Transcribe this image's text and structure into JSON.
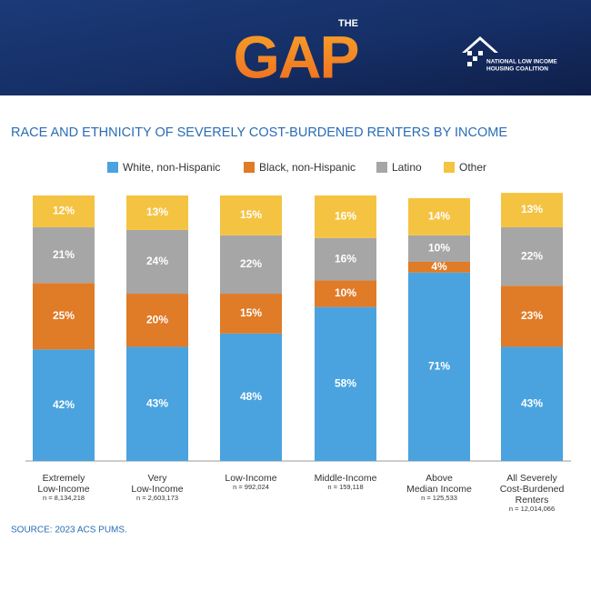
{
  "header": {
    "logo_small": "THE",
    "logo": "GAP",
    "org": [
      "NATIONAL LOW INCOME",
      "HOUSING COALITION"
    ]
  },
  "chart_data": {
    "type": "stacked_bar",
    "title": "RACE AND ETHNICITY OF SEVERELY COST-BURDENED RENTERS BY INCOME",
    "categories": [
      [
        "Extremely",
        "Low-Income"
      ],
      [
        "Very",
        "Low-Income"
      ],
      [
        "Low-Income"
      ],
      [
        "Middle-Income"
      ],
      [
        "Above",
        "Median Income"
      ],
      [
        "All Severely",
        "Cost-Burdened",
        "Renters"
      ]
    ],
    "n_labels": [
      "n = 8,134,218",
      "n = 2,603,173",
      "n = 992,024",
      "n = 159,118",
      "n = 125,533",
      "n = 12,014,066"
    ],
    "ylim": [
      0,
      100
    ],
    "series": [
      {
        "name": "White, non-Hispanic",
        "color": "#4aa3df",
        "values": [
          42,
          43,
          48,
          58,
          71,
          43
        ],
        "value_labels": [
          "42%",
          "43%",
          "48%",
          "58%",
          "71%",
          "43%"
        ]
      },
      {
        "name": "Black, non-Hispanic",
        "color": "#e07b27",
        "values": [
          25,
          20,
          15,
          10,
          4,
          23
        ],
        "value_labels": [
          "25%",
          "20%",
          "15%",
          "10%",
          "4%",
          "23%"
        ]
      },
      {
        "name": "Latino",
        "color": "#a6a6a6",
        "values": [
          21,
          24,
          22,
          16,
          10,
          22
        ],
        "value_labels": [
          "21%",
          "24%",
          "22%",
          "16%",
          "10%",
          "22%"
        ]
      },
      {
        "name": "Other",
        "color": "#f5c342",
        "values": [
          12,
          13,
          15,
          16,
          14,
          13
        ],
        "value_labels": [
          "12%",
          "13%",
          "15%",
          "16%",
          "14%",
          "13%"
        ]
      }
    ],
    "source": "SOURCE: 2023 ACS PUMS."
  }
}
